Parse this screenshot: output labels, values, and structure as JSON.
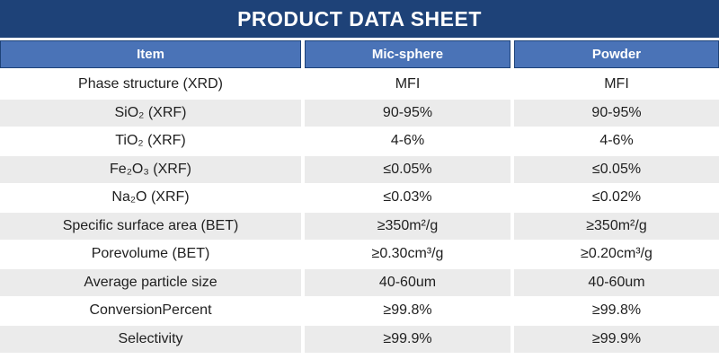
{
  "title": "PRODUCT DATA SHEET",
  "colors": {
    "title_bar": "#1e4278",
    "header_row": "#4a73b7",
    "stripe": "#ebebeb",
    "header_text": "#ffffff",
    "body_text": "#1f1f1f"
  },
  "table": {
    "columns": [
      "Item",
      "Mic-sphere",
      "Powder"
    ],
    "rows": [
      {
        "item": "Phase structure (XRD)",
        "mic_sphere": "MFI",
        "powder": "MFI"
      },
      {
        "item": "SiO₂ (XRF)",
        "mic_sphere": "90-95%",
        "powder": "90-95%"
      },
      {
        "item": "TiO₂ (XRF)",
        "mic_sphere": "4-6%",
        "powder": "4-6%"
      },
      {
        "item": "Fe₂O₃ (XRF)",
        "mic_sphere": "≤0.05%",
        "powder": "≤0.05%"
      },
      {
        "item": "Na₂O (XRF)",
        "mic_sphere": "≤0.03%",
        "powder": "≤0.02%"
      },
      {
        "item": "Specific surface area (BET)",
        "mic_sphere": "≥350m²/g",
        "powder": "≥350m²/g"
      },
      {
        "item": "Porevolume (BET)",
        "mic_sphere": "≥0.30cm³/g",
        "powder": "≥0.20cm³/g"
      },
      {
        "item": "Average particle size",
        "mic_sphere": "40-60um",
        "powder": "40-60um"
      },
      {
        "item": "ConversionPercent",
        "mic_sphere": "≥99.8%",
        "powder": "≥99.8%"
      },
      {
        "item": "Selectivity",
        "mic_sphere": "≥99.9%",
        "powder": "≥99.9%"
      }
    ]
  }
}
